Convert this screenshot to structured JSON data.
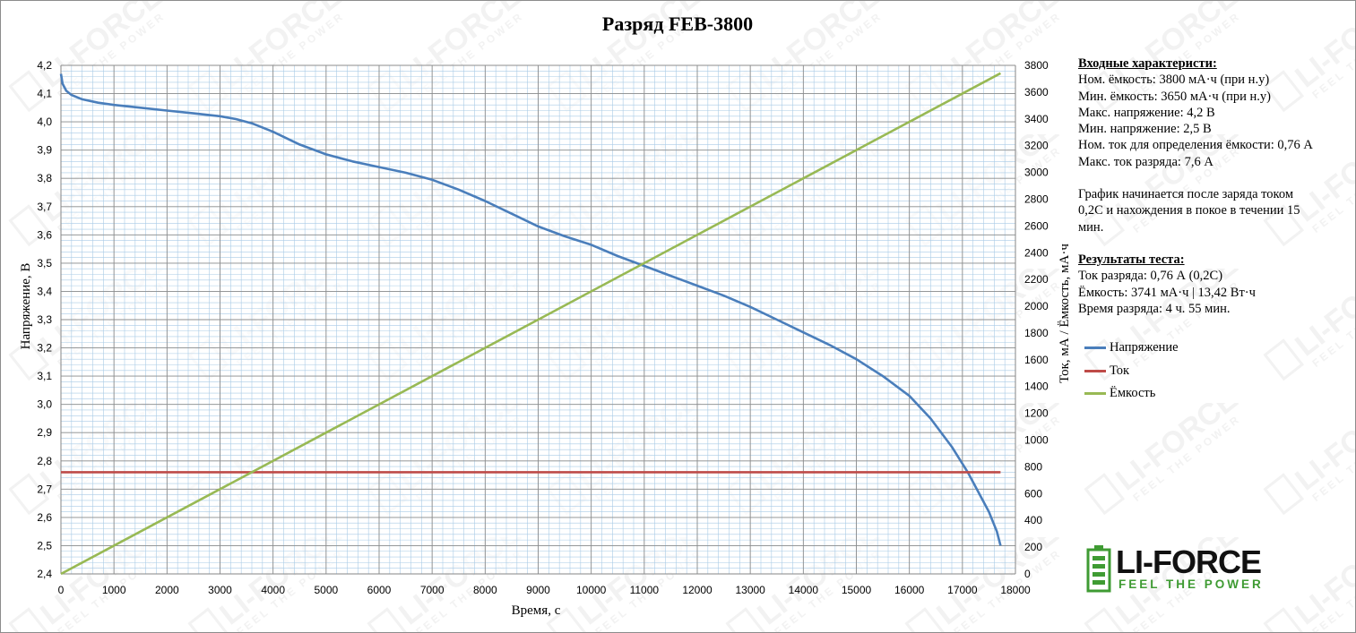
{
  "chart_data": {
    "type": "line",
    "title": "Разряд FEB-3800",
    "xlabel": "Время, с",
    "ylabel_left": "Напряжение, В",
    "ylabel_right": "Ток, мА / Ёмкость, мА·ч",
    "xlim": [
      0,
      18000
    ],
    "ylim_left": [
      2.4,
      4.2
    ],
    "ylim_right": [
      0,
      3800
    ],
    "x_ticks": [
      0,
      1000,
      2000,
      3000,
      4000,
      5000,
      6000,
      7000,
      8000,
      9000,
      10000,
      11000,
      12000,
      13000,
      14000,
      15000,
      16000,
      17000,
      18000
    ],
    "y_ticks_left": [
      "2,4",
      "2,5",
      "2,6",
      "2,7",
      "2,8",
      "2,9",
      "3,0",
      "3,1",
      "3,2",
      "3,3",
      "3,4",
      "3,5",
      "3,6",
      "3,7",
      "3,8",
      "3,9",
      "4,0",
      "4,1",
      "4,2"
    ],
    "y_ticks_right": [
      0,
      200,
      400,
      600,
      800,
      1000,
      1200,
      1400,
      1600,
      1800,
      2000,
      2200,
      2400,
      2600,
      2800,
      3000,
      3200,
      3400,
      3600,
      3800
    ],
    "grid": true,
    "series": [
      {
        "name": "Напряжение",
        "color": "#4a7ebb",
        "axis": "left",
        "x": [
          0,
          30,
          100,
          200,
          400,
          700,
          1000,
          1500,
          2000,
          2500,
          3000,
          3300,
          3600,
          4000,
          4500,
          5000,
          5500,
          6000,
          6500,
          7000,
          7500,
          8000,
          8500,
          9000,
          9500,
          10000,
          10500,
          11000,
          11500,
          12000,
          12500,
          13000,
          13500,
          14000,
          14500,
          15000,
          15500,
          16000,
          16400,
          16800,
          17100,
          17300,
          17500,
          17650,
          17720
        ],
        "y": [
          4.17,
          4.135,
          4.11,
          4.095,
          4.08,
          4.068,
          4.06,
          4.05,
          4.04,
          4.03,
          4.02,
          4.01,
          3.995,
          3.965,
          3.92,
          3.885,
          3.86,
          3.84,
          3.82,
          3.795,
          3.76,
          3.72,
          3.675,
          3.63,
          3.595,
          3.565,
          3.525,
          3.49,
          3.455,
          3.42,
          3.385,
          3.345,
          3.3,
          3.255,
          3.21,
          3.16,
          3.1,
          3.03,
          2.95,
          2.85,
          2.76,
          2.69,
          2.62,
          2.55,
          2.5
        ]
      },
      {
        "name": "Ток",
        "color": "#be4b48",
        "axis": "right",
        "x": [
          0,
          17720
        ],
        "y": [
          760,
          760
        ]
      },
      {
        "name": "Ёмкость",
        "color": "#98b954",
        "axis": "right",
        "x": [
          0,
          17720
        ],
        "y": [
          0,
          3741
        ]
      }
    ],
    "legend_position": "right"
  },
  "info": {
    "input_header": "Входные характеристи:",
    "input_lines": [
      "Ном. ёмкость: 3800 мА·ч (при н.у)",
      "Мин. ёмкость: 3650 мА·ч (при н.у)",
      "Макс. напряжение: 4,2 В",
      "Мин. напряжение: 2,5 В",
      "Ном. ток для определения ёмкости: 0,76 А",
      "Макс. ток разряда: 7,6 А"
    ],
    "note_lines": [
      "График начинается после заряда током",
      "0,2С и нахождения в покое в течении 15",
      "мин."
    ],
    "results_header": "Результаты теста:",
    "results_lines": [
      "Ток разряда: 0,76 А (0,2С)",
      "Ёмкость:  3741 мА·ч | 13,42 Вт·ч",
      "Время разряда:  4 ч. 55 мин."
    ]
  },
  "brand": {
    "name": "LI-FORCE",
    "slogan": "FEEL THE POWER",
    "colors": {
      "dark": "#111111",
      "green": "#3f9b33"
    }
  }
}
